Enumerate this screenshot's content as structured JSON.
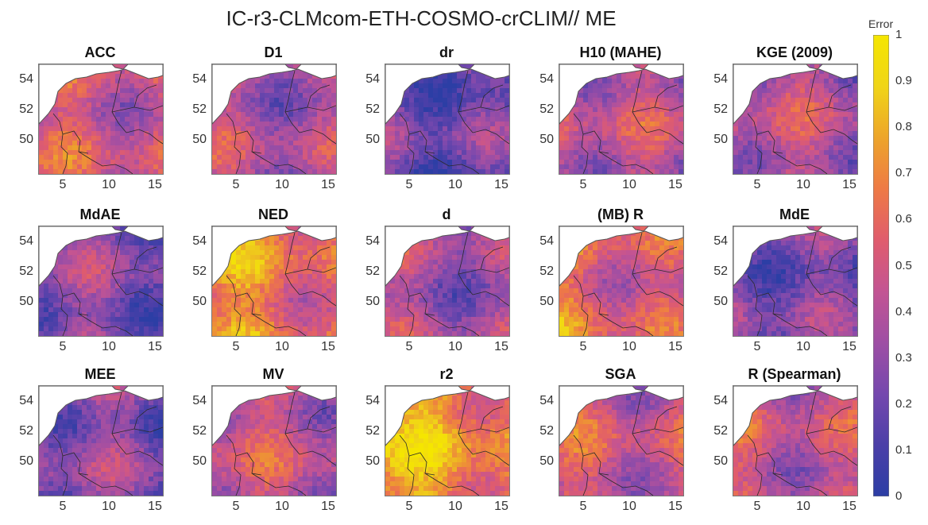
{
  "title": "IC-r3-CLMcom-ETH-COSMO-crCLIM// ME",
  "colorbar": {
    "label": "Error",
    "ticks": [
      "1",
      "0.9",
      "0.8",
      "0.7",
      "0.6",
      "0.5",
      "0.4",
      "0.3",
      "0.2",
      "0.1",
      "0"
    ],
    "min": 0,
    "max": 1,
    "colormap": [
      "#2c3ea5",
      "#4b3fa8",
      "#7548ae",
      "#9e4ea4",
      "#c35493",
      "#e05c6d",
      "#ee7a45",
      "#eda52a",
      "#f0d517",
      "#f5e600"
    ]
  },
  "axes": {
    "y_ticks": [
      "54",
      "52",
      "50"
    ],
    "x_ticks": [
      "5",
      "10",
      "15"
    ]
  },
  "panels": [
    {
      "title": "ACC",
      "level": 0.45
    },
    {
      "title": "D1",
      "level": 0.35
    },
    {
      "title": "dr",
      "level": 0.18
    },
    {
      "title": "H10 (MAHE)",
      "level": 0.4
    },
    {
      "title": "KGE (2009)",
      "level": 0.38
    },
    {
      "title": "MdAE",
      "level": 0.25
    },
    {
      "title": "NED",
      "level": 0.55
    },
    {
      "title": "d",
      "level": 0.32
    },
    {
      "title": "(MB) R",
      "level": 0.45
    },
    {
      "title": "MdE",
      "level": 0.22
    },
    {
      "title": "MEE",
      "level": 0.25
    },
    {
      "title": "MV",
      "level": 0.42
    },
    {
      "title": "r2",
      "level": 0.65
    },
    {
      "title": "SGA",
      "level": 0.45
    },
    {
      "title": "R (Spearman)",
      "level": 0.42
    }
  ]
}
